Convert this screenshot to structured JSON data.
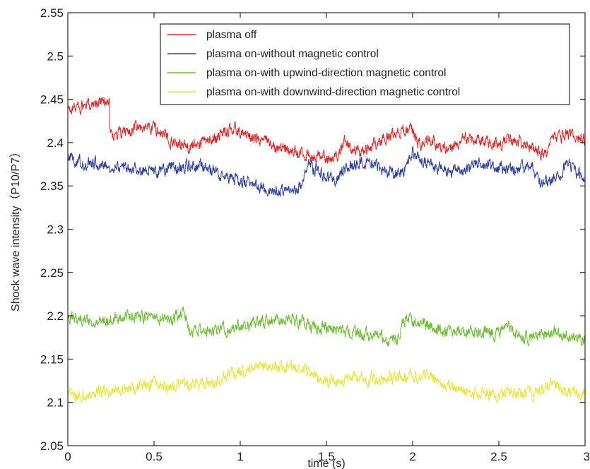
{
  "chart_data": {
    "type": "line",
    "title": "",
    "xlabel": "time (s)",
    "ylabel": "Shock wave intensity（P10/P7）",
    "xlim": [
      0,
      3
    ],
    "ylim": [
      2.05,
      2.55
    ],
    "x_ticks": [
      0,
      0.5,
      1,
      1.5,
      2,
      2.5,
      3
    ],
    "x_tick_labels": [
      "0",
      "0.5",
      "1",
      "1.5",
      "2",
      "2.5",
      "3"
    ],
    "y_ticks": [
      2.05,
      2.1,
      2.15,
      2.2,
      2.25,
      2.3,
      2.35,
      2.4,
      2.45,
      2.5,
      2.55
    ],
    "y_tick_labels": [
      "2.05",
      "2.1",
      "2.15",
      "2.2",
      "2.25",
      "2.3",
      "2.35",
      "2.4",
      "2.45",
      "2.5",
      "2.55"
    ],
    "grid": false,
    "legend_position": "top-right",
    "series": [
      {
        "name": "plasma off",
        "color": "#e8211f",
        "noise": 0.006,
        "x": [
          0,
          0.05,
          0.1,
          0.15,
          0.2,
          0.24,
          0.245,
          0.3,
          0.4,
          0.5,
          0.6,
          0.7,
          0.8,
          0.9,
          0.95,
          1.0,
          1.1,
          1.2,
          1.3,
          1.4,
          1.45,
          1.5,
          1.55,
          1.6,
          1.65,
          1.7,
          1.8,
          1.9,
          1.95,
          2.0,
          2.05,
          2.1,
          2.2,
          2.3,
          2.4,
          2.5,
          2.6,
          2.7,
          2.75,
          2.78,
          2.8,
          2.9,
          3.0
        ],
        "y": [
          2.437,
          2.442,
          2.44,
          2.446,
          2.448,
          2.449,
          2.408,
          2.41,
          2.416,
          2.418,
          2.403,
          2.395,
          2.402,
          2.41,
          2.416,
          2.413,
          2.404,
          2.398,
          2.389,
          2.385,
          2.387,
          2.38,
          2.38,
          2.403,
          2.388,
          2.388,
          2.4,
          2.412,
          2.415,
          2.413,
          2.395,
          2.402,
          2.392,
          2.405,
          2.403,
          2.398,
          2.402,
          2.392,
          2.387,
          2.383,
          2.405,
          2.408,
          2.405
        ]
      },
      {
        "name": "plasma on-without magnetic control",
        "color": "#2b3ea8",
        "noise": 0.006,
        "x": [
          0,
          0.05,
          0.1,
          0.2,
          0.3,
          0.4,
          0.5,
          0.6,
          0.7,
          0.8,
          0.9,
          1.0,
          1.05,
          1.1,
          1.15,
          1.2,
          1.25,
          1.3,
          1.35,
          1.4,
          1.45,
          1.5,
          1.55,
          1.6,
          1.7,
          1.8,
          1.9,
          1.95,
          2.0,
          2.1,
          2.2,
          2.3,
          2.4,
          2.5,
          2.6,
          2.7,
          2.75,
          2.8,
          2.85,
          2.9,
          2.95,
          3.0
        ],
        "y": [
          2.383,
          2.38,
          2.375,
          2.375,
          2.372,
          2.37,
          2.365,
          2.37,
          2.373,
          2.372,
          2.362,
          2.355,
          2.357,
          2.348,
          2.345,
          2.348,
          2.342,
          2.345,
          2.352,
          2.373,
          2.368,
          2.36,
          2.357,
          2.367,
          2.377,
          2.372,
          2.364,
          2.37,
          2.388,
          2.375,
          2.366,
          2.372,
          2.378,
          2.37,
          2.368,
          2.372,
          2.352,
          2.356,
          2.36,
          2.377,
          2.365,
          2.358
        ]
      },
      {
        "name": "plasma on-with upwind-direction magnetic control",
        "color": "#6bbf2f",
        "noise": 0.006,
        "x": [
          0,
          0.05,
          0.1,
          0.2,
          0.3,
          0.4,
          0.5,
          0.6,
          0.65,
          0.67,
          0.7,
          0.8,
          0.9,
          1.0,
          1.1,
          1.2,
          1.3,
          1.4,
          1.5,
          1.6,
          1.7,
          1.8,
          1.85,
          1.9,
          1.95,
          2.0,
          2.1,
          2.2,
          2.3,
          2.4,
          2.5,
          2.55,
          2.6,
          2.7,
          2.8,
          2.9,
          3.0
        ],
        "y": [
          2.2,
          2.198,
          2.195,
          2.195,
          2.198,
          2.2,
          2.198,
          2.195,
          2.203,
          2.208,
          2.185,
          2.183,
          2.185,
          2.19,
          2.192,
          2.195,
          2.197,
          2.188,
          2.185,
          2.182,
          2.178,
          2.177,
          2.172,
          2.17,
          2.195,
          2.193,
          2.187,
          2.182,
          2.182,
          2.183,
          2.18,
          2.19,
          2.175,
          2.177,
          2.18,
          2.177,
          2.172
        ]
      },
      {
        "name": "plasma on-with downwind-direction magnetic control",
        "color": "#e6e83a",
        "noise": 0.006,
        "x": [
          0,
          0.05,
          0.1,
          0.2,
          0.3,
          0.4,
          0.5,
          0.6,
          0.7,
          0.8,
          0.85,
          0.9,
          1.0,
          1.1,
          1.2,
          1.3,
          1.4,
          1.5,
          1.6,
          1.7,
          1.8,
          1.9,
          2.0,
          2.05,
          2.1,
          2.15,
          2.2,
          2.3,
          2.4,
          2.5,
          2.6,
          2.7,
          2.8,
          2.9,
          3.0
        ],
        "y": [
          2.11,
          2.105,
          2.11,
          2.113,
          2.115,
          2.118,
          2.12,
          2.117,
          2.12,
          2.122,
          2.12,
          2.13,
          2.135,
          2.14,
          2.142,
          2.14,
          2.135,
          2.125,
          2.125,
          2.13,
          2.125,
          2.128,
          2.13,
          2.125,
          2.135,
          2.12,
          2.12,
          2.115,
          2.108,
          2.11,
          2.112,
          2.11,
          2.12,
          2.115,
          2.11
        ]
      }
    ]
  }
}
